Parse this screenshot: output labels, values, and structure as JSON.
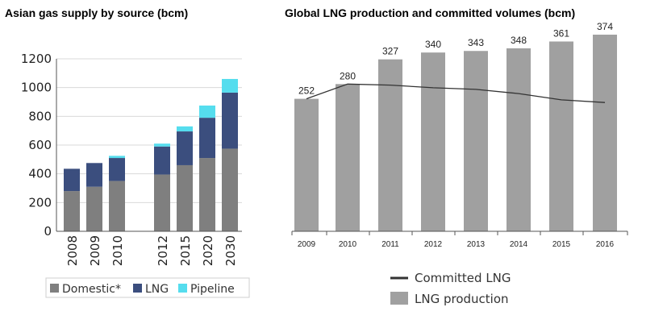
{
  "chart_data": [
    {
      "type": "bar",
      "stacked": true,
      "title": "Asian gas supply by source (bcm)",
      "categories": [
        "2008",
        "2009",
        "2010",
        "2012",
        "2015",
        "2020",
        "2030"
      ],
      "series": [
        {
          "name": "Domestic*",
          "color": "#7f7f7f",
          "values": [
            280,
            310,
            350,
            395,
            460,
            510,
            575
          ]
        },
        {
          "name": "LNG",
          "color": "#3b4e7e",
          "values": [
            155,
            165,
            160,
            195,
            235,
            280,
            390
          ]
        },
        {
          "name": "Pipeline",
          "color": "#55ddee",
          "values": [
            0,
            0,
            15,
            20,
            35,
            85,
            95
          ]
        }
      ],
      "ylim": [
        0,
        1200
      ],
      "yticks": [
        "0",
        "200",
        "400",
        "600",
        "800",
        "1000",
        "1200"
      ],
      "legend_position": "bottom"
    },
    {
      "type": "bar+line",
      "title": "Global LNG production and committed volumes (bcm)",
      "categories": [
        "2009",
        "2010",
        "2011",
        "2012",
        "2013",
        "2014",
        "2015",
        "2016"
      ],
      "series": [
        {
          "name": "LNG production",
          "type": "bar",
          "color": "#a0a0a0",
          "values": [
            252,
            280,
            327,
            340,
            343,
            348,
            361,
            374
          ]
        },
        {
          "name": "Committed LNG",
          "type": "line",
          "color": "#333333",
          "values": [
            252,
            280,
            278,
            273,
            270,
            262,
            250,
            245
          ]
        }
      ],
      "data_labels": [
        "252",
        "280",
        "327",
        "340",
        "343",
        "348",
        "361",
        "374"
      ],
      "ylim": [
        0,
        400
      ],
      "legend_position": "bottom"
    }
  ]
}
